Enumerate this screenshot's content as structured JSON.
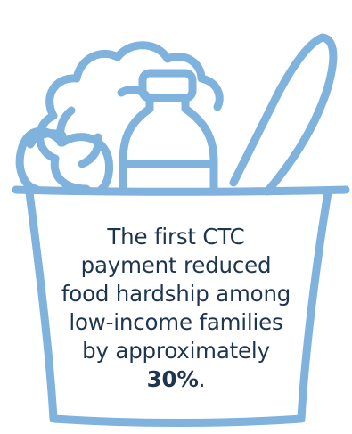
{
  "colors": {
    "outline": "#7fb2dc",
    "text": "#1e3550",
    "background": "#ffffff"
  },
  "icons": {
    "bag": "grocery-bag-icon",
    "cauliflower": "cauliflower-icon",
    "milk": "milk-bottle-icon",
    "bread": "baguette-icon",
    "apple": "apple-icon"
  },
  "caption": {
    "lines": [
      "The first CTC",
      "payment reduced",
      "food hardship among",
      "low-income families",
      "by approximately"
    ],
    "stat": "30%",
    "stat_suffix": "."
  }
}
